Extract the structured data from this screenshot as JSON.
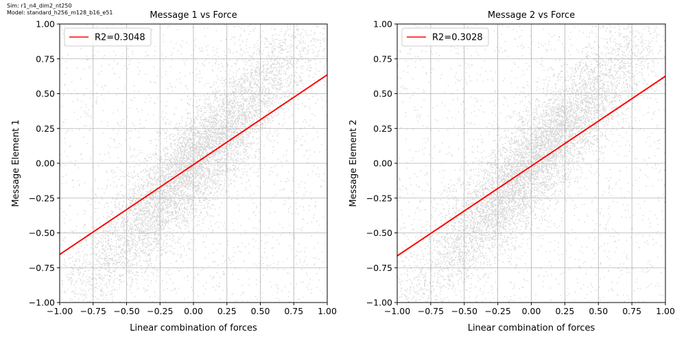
{
  "header": {
    "sim": "Sim: r1_n4_dim2_nt250",
    "model": "Model: standard_h256_m128_b16_e51"
  },
  "colors": {
    "points": "#000000",
    "fit_line": "#ff0000",
    "grid": "#b0b0b0"
  },
  "chart_data": [
    {
      "type": "scatter",
      "title": "Message 1 vs Force",
      "xlabel": "Linear combination of forces",
      "ylabel": "Message Element 1",
      "xlim": [
        -1.0,
        1.0
      ],
      "ylim": [
        -1.0,
        1.0
      ],
      "xticks": [
        "−1.00",
        "−0.75",
        "−0.50",
        "−0.25",
        "0.00",
        "0.25",
        "0.50",
        "0.75",
        "1.00"
      ],
      "yticks": [
        "−1.00",
        "−0.75",
        "−0.50",
        "−0.25",
        "0.00",
        "0.25",
        "0.50",
        "0.75",
        "1.00"
      ],
      "grid": true,
      "legend": {
        "placement": "upper-left",
        "entries": [
          {
            "label": "R2=0.3048",
            "color": "#ff0000",
            "marker": "line"
          }
        ]
      },
      "fit_line": {
        "slope": 0.645,
        "intercept": -0.01
      },
      "scatter_trend": {
        "slope": 1.0,
        "intercept": 0.0,
        "color": "#000000",
        "alpha": "low"
      }
    },
    {
      "type": "scatter",
      "title": "Message 2 vs Force",
      "xlabel": "Linear combination of forces",
      "ylabel": "Message Element 2",
      "xlim": [
        -1.0,
        1.0
      ],
      "ylim": [
        -1.0,
        1.0
      ],
      "xticks": [
        "−1.00",
        "−0.75",
        "−0.50",
        "−0.25",
        "0.00",
        "0.25",
        "0.50",
        "0.75",
        "1.00"
      ],
      "yticks": [
        "−1.00",
        "−0.75",
        "−0.50",
        "−0.25",
        "0.00",
        "0.25",
        "0.50",
        "0.75",
        "1.00"
      ],
      "grid": true,
      "legend": {
        "placement": "upper-left",
        "entries": [
          {
            "label": "R2=0.3028",
            "color": "#ff0000",
            "marker": "line"
          }
        ]
      },
      "fit_line": {
        "slope": 0.645,
        "intercept": -0.02
      },
      "scatter_trend": {
        "slope": 1.0,
        "intercept": 0.0,
        "color": "#000000",
        "alpha": "low"
      }
    }
  ]
}
